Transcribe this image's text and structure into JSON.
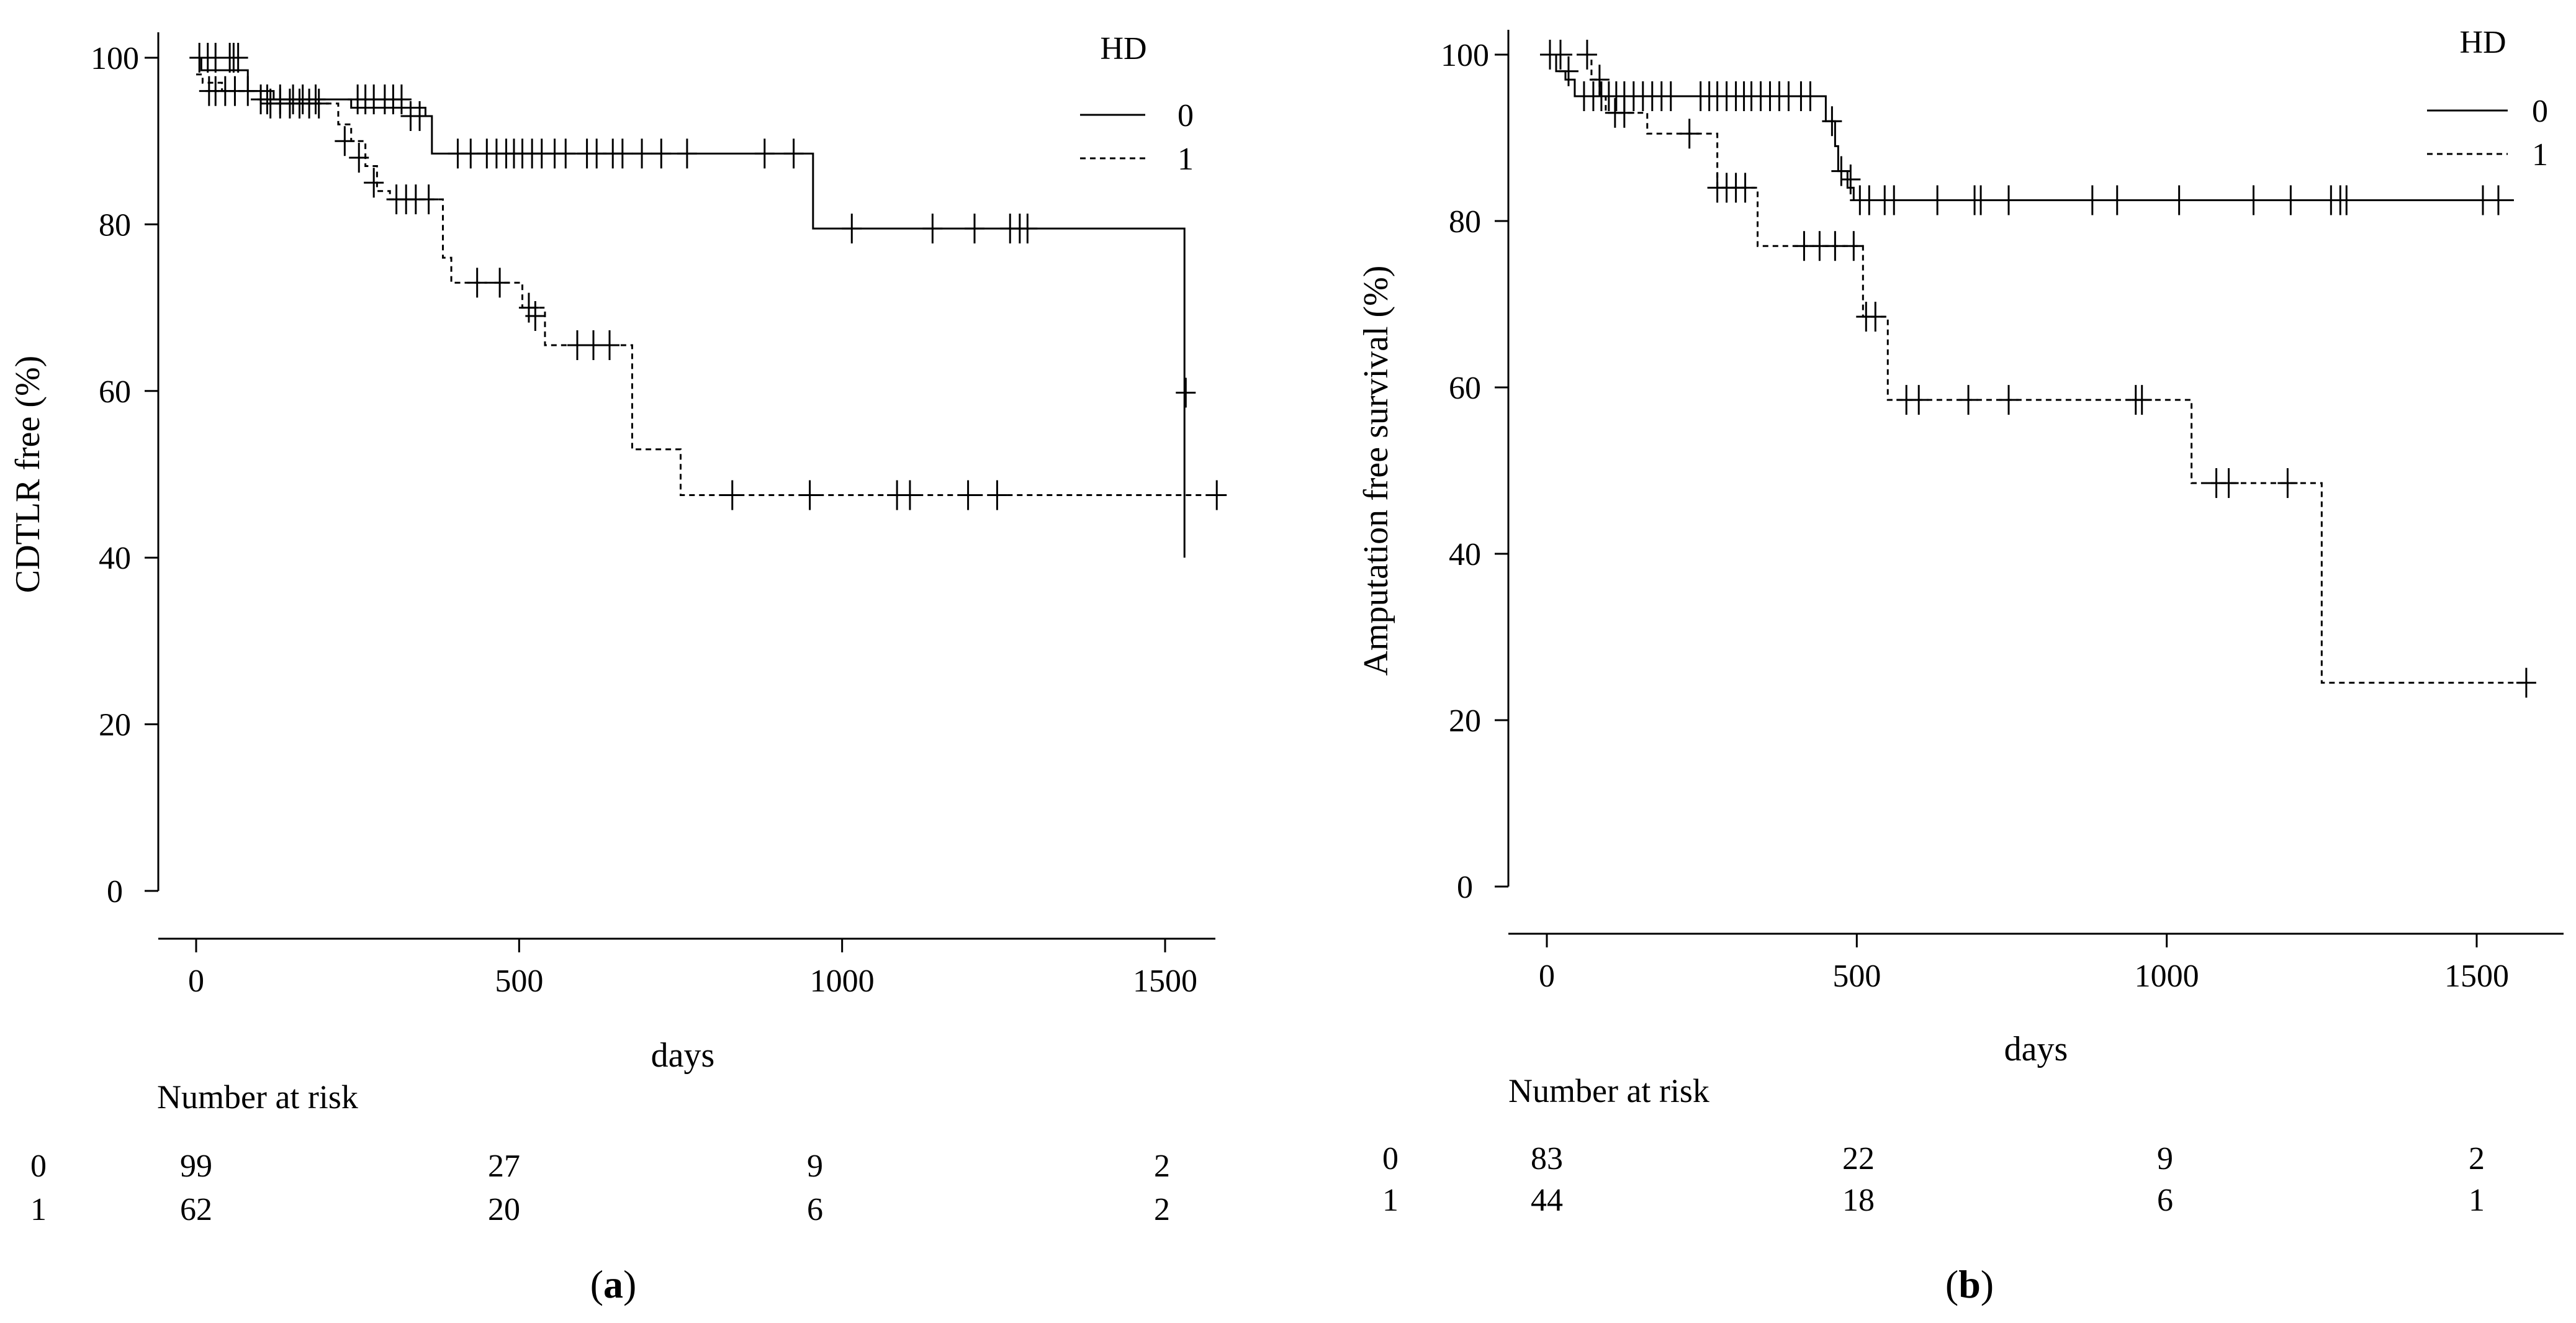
{
  "chart_data": [
    {
      "type": "line",
      "subtype": "kaplan-meier",
      "panel_label": "(a)",
      "panel_letter": "a",
      "xlabel": "days",
      "ylabel": "CDTLR free (%)",
      "xlim": [
        0,
        1600
      ],
      "ylim": [
        0,
        100
      ],
      "x_ticks": [
        0,
        500,
        1000,
        1500
      ],
      "y_ticks": [
        0,
        20,
        40,
        60,
        80,
        100
      ],
      "legend": {
        "title": "HD",
        "position": "top-right",
        "entries": [
          "0",
          "1"
        ]
      },
      "series": [
        {
          "name": "0",
          "line_style": "solid",
          "steps": [
            [
              0,
              100
            ],
            [
              8,
              98.5
            ],
            [
              60,
              98.5
            ],
            [
              80,
              96
            ],
            [
              100,
              96
            ],
            [
              120,
              95
            ],
            [
              210,
              95
            ],
            [
              240,
              94
            ],
            [
              330,
              94
            ],
            [
              355,
              93
            ],
            [
              365,
              88.5
            ],
            [
              950,
              88.5
            ],
            [
              955,
              79.5
            ],
            [
              1530,
              79.5
            ],
            [
              1530,
              40
            ],
            [
              1530,
              59.8
            ]
          ],
          "censored": [
            [
              5,
              100
            ],
            [
              18,
              100
            ],
            [
              30,
              100
            ],
            [
              52,
              100
            ],
            [
              58,
              100
            ],
            [
              65,
              100
            ],
            [
              110,
              95
            ],
            [
              130,
              95
            ],
            [
              150,
              95
            ],
            [
              165,
              95
            ],
            [
              185,
              95
            ],
            [
              250,
              95
            ],
            [
              262,
              95
            ],
            [
              275,
              95
            ],
            [
              292,
              95
            ],
            [
              305,
              95
            ],
            [
              318,
              95
            ],
            [
              332,
              93
            ],
            [
              346,
              93
            ],
            [
              405,
              88.5
            ],
            [
              425,
              88.5
            ],
            [
              450,
              88.5
            ],
            [
              465,
              88.5
            ],
            [
              480,
              88.5
            ],
            [
              492,
              88.5
            ],
            [
              505,
              88.5
            ],
            [
              520,
              88.5
            ],
            [
              535,
              88.5
            ],
            [
              555,
              88.5
            ],
            [
              572,
              88.5
            ],
            [
              605,
              88.5
            ],
            [
              620,
              88.5
            ],
            [
              645,
              88.5
            ],
            [
              660,
              88.5
            ],
            [
              690,
              88.5
            ],
            [
              720,
              88.5
            ],
            [
              760,
              88.5
            ],
            [
              880,
              88.5
            ],
            [
              925,
              88.5
            ],
            [
              1015,
              79.5
            ],
            [
              1140,
              79.5
            ],
            [
              1205,
              79.5
            ],
            [
              1260,
              79.5
            ],
            [
              1275,
              79.5
            ],
            [
              1287,
              79.5
            ],
            [
              1532,
              59.8
            ]
          ]
        },
        {
          "name": "1",
          "line_style": "dashed",
          "steps": [
            [
              0,
              98
            ],
            [
              10,
              97
            ],
            [
              40,
              96
            ],
            [
              100,
              94.5
            ],
            [
              200,
              94.5
            ],
            [
              220,
              92
            ],
            [
              240,
              90
            ],
            [
              262,
              87
            ],
            [
              280,
              84
            ],
            [
              300,
              83
            ],
            [
              370,
              83
            ],
            [
              382,
              76
            ],
            [
              395,
              73
            ],
            [
              480,
              73
            ],
            [
              505,
              70
            ],
            [
              540,
              65.5
            ],
            [
              655,
              65.5
            ],
            [
              675,
              53
            ],
            [
              745,
              53
            ],
            [
              750,
              47.5
            ],
            [
              1580,
              47.5
            ]
          ],
          "censored": [
            [
              20,
              96
            ],
            [
              30,
              96
            ],
            [
              45,
              96
            ],
            [
              60,
              96
            ],
            [
              80,
              96
            ],
            [
              100,
              95
            ],
            [
              115,
              94.5
            ],
            [
              130,
              94.5
            ],
            [
              145,
              94.5
            ],
            [
              160,
              94.5
            ],
            [
              175,
              94.5
            ],
            [
              190,
              94.5
            ],
            [
              230,
              90
            ],
            [
              252,
              88
            ],
            [
              275,
              85
            ],
            [
              310,
              83
            ],
            [
              325,
              83
            ],
            [
              340,
              83
            ],
            [
              360,
              83
            ],
            [
              435,
              73
            ],
            [
              470,
              73
            ],
            [
              515,
              70
            ],
            [
              525,
              69
            ],
            [
              590,
              65.5
            ],
            [
              615,
              65.5
            ],
            [
              640,
              65.5
            ],
            [
              830,
              47.5
            ],
            [
              950,
              47.5
            ],
            [
              1085,
              47.5
            ],
            [
              1105,
              47.5
            ],
            [
              1195,
              47.5
            ],
            [
              1240,
              47.5
            ],
            [
              1580,
              47.5
            ]
          ]
        }
      ],
      "risk_table": {
        "title": "Number at risk",
        "columns": [
          0,
          500,
          1000,
          1500
        ],
        "rows": [
          {
            "group": "0",
            "values": [
              "99",
              "27",
              "9",
              "2"
            ]
          },
          {
            "group": "1",
            "values": [
              "62",
              "20",
              "6",
              "2"
            ]
          }
        ]
      }
    },
    {
      "type": "line",
      "subtype": "kaplan-meier",
      "panel_label": "(b)",
      "panel_letter": "b",
      "xlabel": "days",
      "ylabel": "Amputation free survival (%)",
      "xlim": [
        0,
        1600
      ],
      "ylim": [
        0,
        100
      ],
      "x_ticks": [
        0,
        500,
        1000,
        1500
      ],
      "y_ticks": [
        0,
        20,
        40,
        60,
        80,
        100
      ],
      "legend": {
        "title": "HD",
        "position": "top-right",
        "entries": [
          "0",
          "1"
        ]
      },
      "series": [
        {
          "name": "0",
          "line_style": "solid",
          "steps": [
            [
              0,
              100
            ],
            [
              15,
              98
            ],
            [
              30,
              97
            ],
            [
              45,
              95
            ],
            [
              440,
              95
            ],
            [
              450,
              92
            ],
            [
              465,
              89
            ],
            [
              470,
              86
            ],
            [
              485,
              84
            ],
            [
              495,
              82.5
            ],
            [
              1560,
              82.5
            ]
          ],
          "censored": [
            [
              5,
              100
            ],
            [
              22,
              100
            ],
            [
              35,
              98
            ],
            [
              60,
              95
            ],
            [
              75,
              95
            ],
            [
              88,
              95
            ],
            [
              100,
              95
            ],
            [
              112,
              95
            ],
            [
              125,
              95
            ],
            [
              140,
              95
            ],
            [
              155,
              95
            ],
            [
              170,
              95
            ],
            [
              185,
              95
            ],
            [
              200,
              95
            ],
            [
              248,
              95
            ],
            [
              262,
              95
            ],
            [
              275,
              95
            ],
            [
              290,
              95
            ],
            [
              305,
              95
            ],
            [
              318,
              95
            ],
            [
              330,
              95
            ],
            [
              345,
              95
            ],
            [
              360,
              95
            ],
            [
              375,
              95
            ],
            [
              390,
              95
            ],
            [
              410,
              95
            ],
            [
              425,
              95
            ],
            [
              460,
              92
            ],
            [
              475,
              86
            ],
            [
              490,
              85
            ],
            [
              505,
              82.5
            ],
            [
              520,
              82.5
            ],
            [
              545,
              82.5
            ],
            [
              560,
              82.5
            ],
            [
              630,
              82.5
            ],
            [
              690,
              82.5
            ],
            [
              700,
              82.5
            ],
            [
              745,
              82.5
            ],
            [
              880,
              82.5
            ],
            [
              920,
              82.5
            ],
            [
              1020,
              82.5
            ],
            [
              1140,
              82.5
            ],
            [
              1200,
              82.5
            ],
            [
              1265,
              82.5
            ],
            [
              1280,
              82.5
            ],
            [
              1290,
              82.5
            ],
            [
              1510,
              82.5
            ],
            [
              1535,
              82.5
            ]
          ]
        },
        {
          "name": "1",
          "line_style": "dashed",
          "steps": [
            [
              0,
              100
            ],
            [
              60,
              100
            ],
            [
              72,
              97
            ],
            [
              85,
              95
            ],
            [
              95,
              93
            ],
            [
              150,
              93
            ],
            [
              162,
              90.5
            ],
            [
              270,
              90.5
            ],
            [
              275,
              84
            ],
            [
              335,
              84
            ],
            [
              340,
              77
            ],
            [
              505,
              77
            ],
            [
              510,
              68.5
            ],
            [
              540,
              68.5
            ],
            [
              550,
              58.5
            ],
            [
              1035,
              58.5
            ],
            [
              1040,
              48.5
            ],
            [
              1245,
              48.5
            ],
            [
              1250,
              24.5
            ],
            [
              1580,
              24.5
            ]
          ],
          "censored": [
            [
              65,
              100
            ],
            [
              85,
              97
            ],
            [
              110,
              93
            ],
            [
              125,
              93
            ],
            [
              230,
              90.5
            ],
            [
              275,
              84
            ],
            [
              290,
              84
            ],
            [
              305,
              84
            ],
            [
              320,
              84
            ],
            [
              415,
              77
            ],
            [
              440,
              77
            ],
            [
              465,
              77
            ],
            [
              495,
              77
            ],
            [
              515,
              68.5
            ],
            [
              530,
              68.5
            ],
            [
              580,
              58.5
            ],
            [
              600,
              58.5
            ],
            [
              680,
              58.5
            ],
            [
              745,
              58.5
            ],
            [
              950,
              58.5
            ],
            [
              960,
              58.5
            ],
            [
              1080,
              48.5
            ],
            [
              1100,
              48.5
            ],
            [
              1195,
              48.5
            ],
            [
              1580,
              24.5
            ]
          ]
        }
      ],
      "risk_table": {
        "title": "Number at risk",
        "columns": [
          0,
          500,
          1000,
          1500
        ],
        "rows": [
          {
            "group": "0",
            "values": [
              "83",
              "22",
              "9",
              "2"
            ]
          },
          {
            "group": "1",
            "values": [
              "44",
              "18",
              "6",
              "1"
            ]
          }
        ]
      }
    }
  ]
}
